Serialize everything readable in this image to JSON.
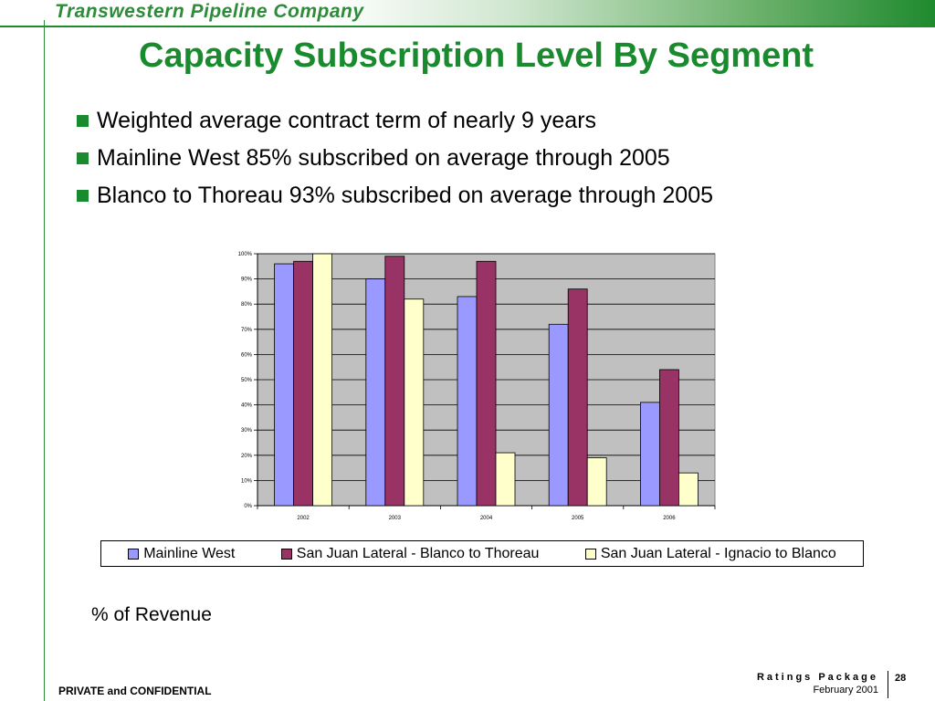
{
  "header": {
    "company": "Transwestern Pipeline Company",
    "title": "Capacity Subscription Level By Segment"
  },
  "bullets": [
    "Weighted average contract term of nearly 9 years",
    "Mainline West 85% subscribed on average through 2005",
    "Blanco to Thoreau 93% subscribed on average through 2005"
  ],
  "chart_data": {
    "type": "bar",
    "categories": [
      "2002",
      "2003",
      "2004",
      "2005",
      "2006"
    ],
    "series": [
      {
        "name": "Mainline West",
        "color": "#9999ff",
        "values": [
          96,
          90,
          83,
          72,
          41
        ]
      },
      {
        "name": "San Juan Lateral - Blanco to Thoreau",
        "color": "#993366",
        "values": [
          97,
          99,
          97,
          86,
          54
        ]
      },
      {
        "name": "San Juan Lateral - Ignacio to Blanco",
        "color": "#ffffcc",
        "values": [
          100,
          82,
          21,
          19,
          13
        ]
      }
    ],
    "y_ticks": [
      "0%",
      "10%",
      "20%",
      "30%",
      "40%",
      "50%",
      "60%",
      "70%",
      "80%",
      "90%",
      "100%"
    ],
    "ylim": [
      0,
      100
    ],
    "grid": true,
    "plot_background": "#c0c0c0",
    "legend_position": "bottom"
  },
  "caption": "% of Revenue",
  "footer": {
    "confidential": "PRIVATE and CONFIDENTIAL",
    "package": "Ratings Package",
    "date": "February 2001",
    "page": "28"
  }
}
